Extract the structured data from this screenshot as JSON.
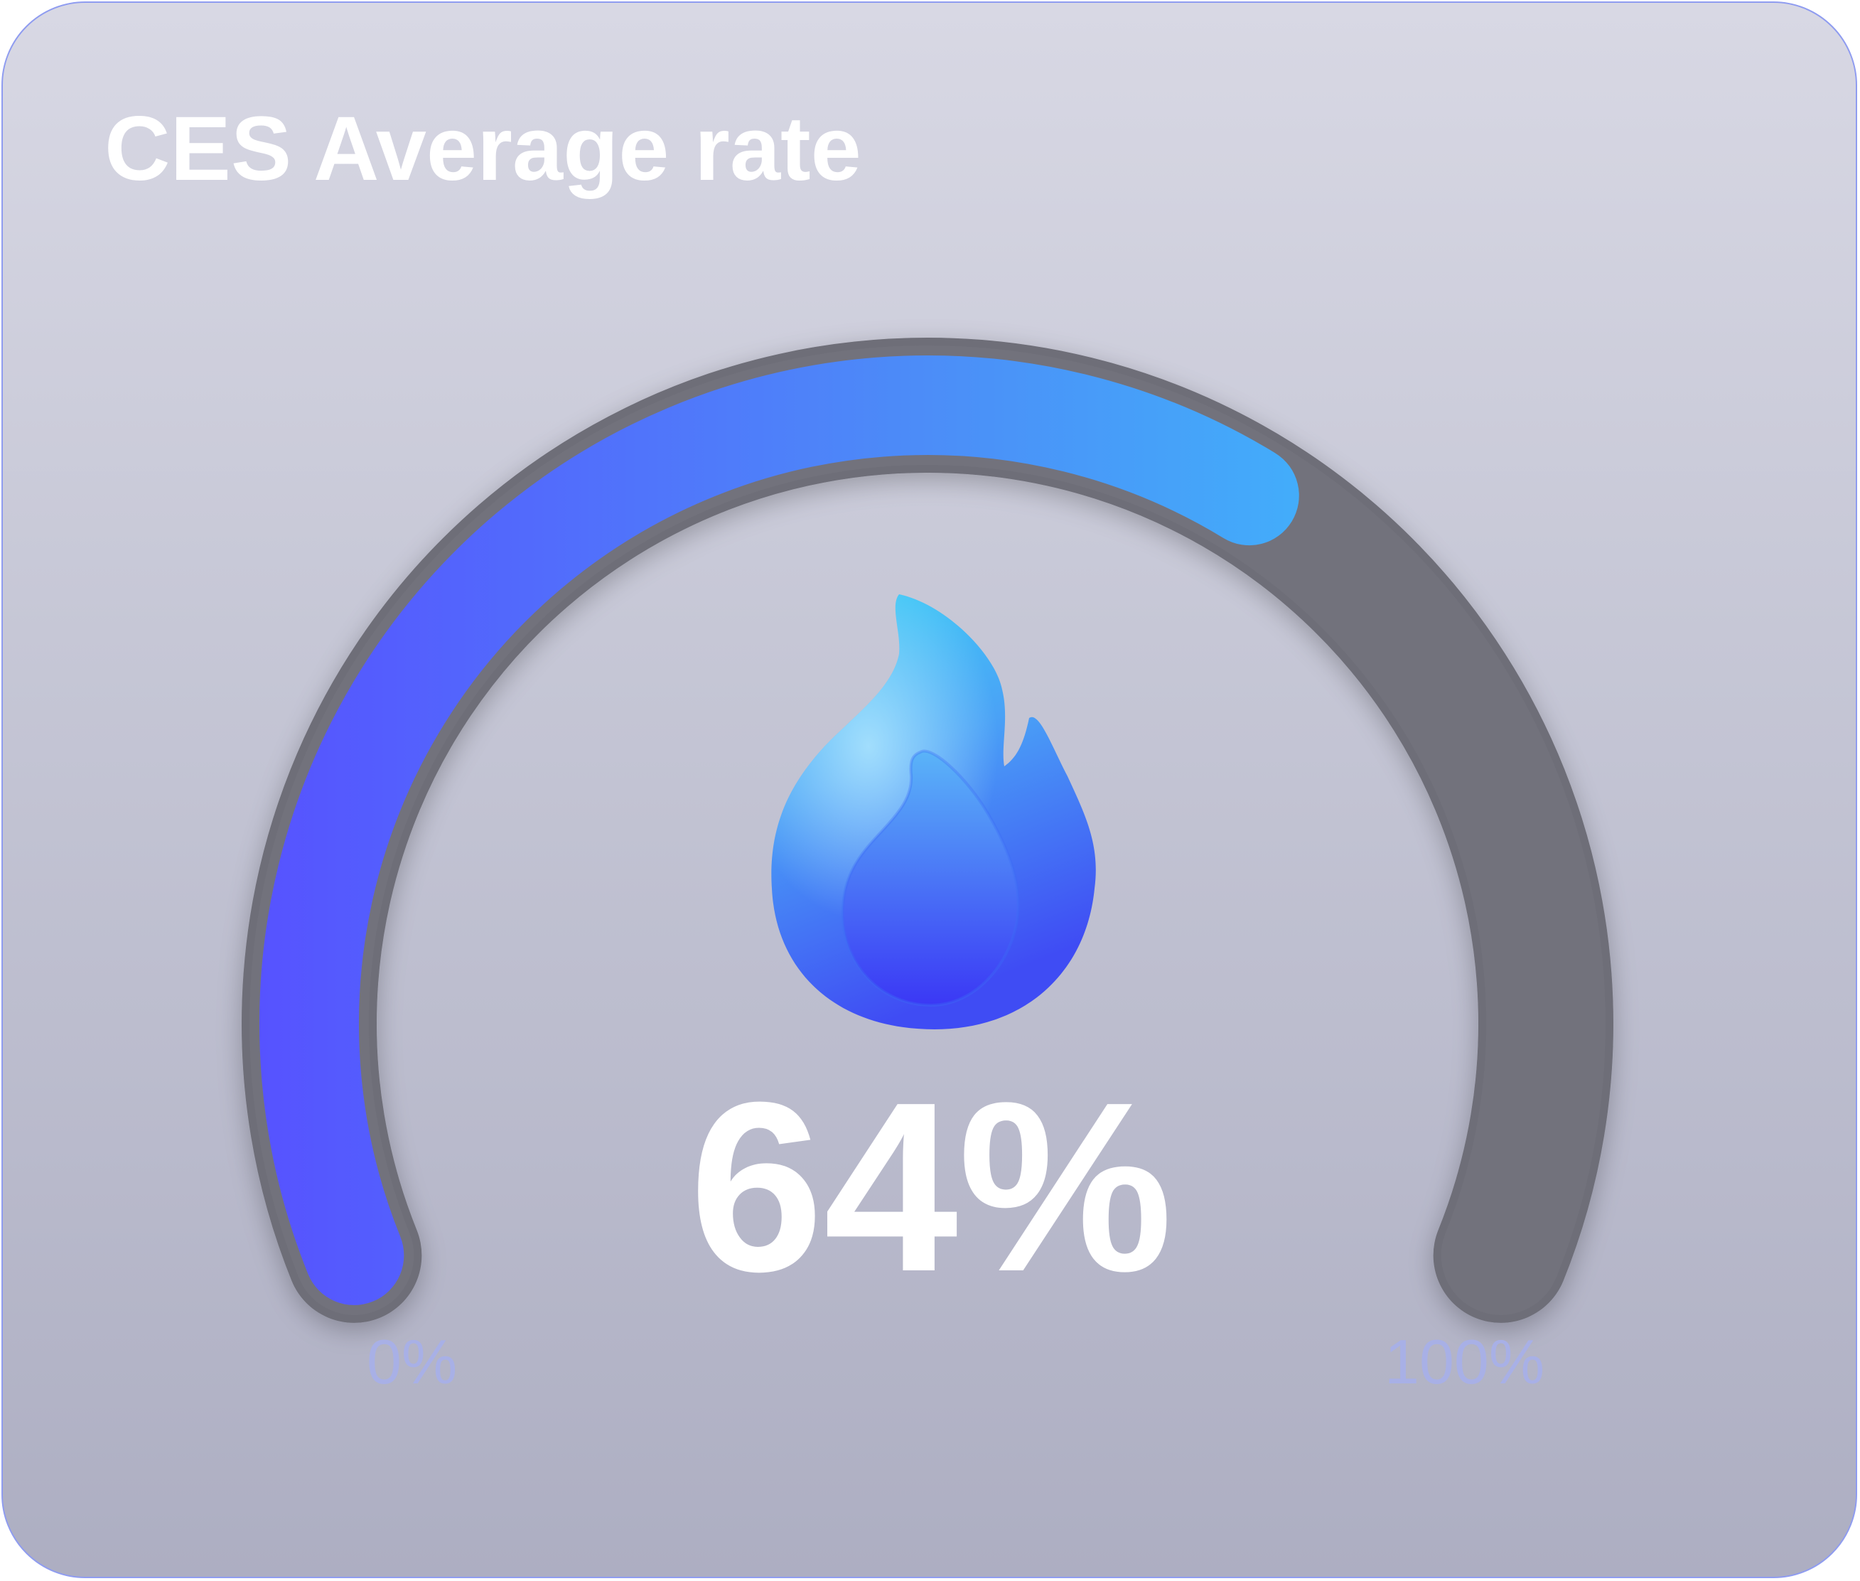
{
  "card": {
    "title": "CES Average rate"
  },
  "gauge": {
    "value_label": "64%",
    "value_fraction": 0.64,
    "min_label": "0%",
    "max_label": "100%",
    "flame_icon": "flame-icon"
  },
  "colors": {
    "arc_start": "#5653ff",
    "arc_mid": "#4c8cf8",
    "arc_end": "#3cc4fb",
    "track": "#72727c",
    "scale_label": "#a8b0e6"
  }
}
